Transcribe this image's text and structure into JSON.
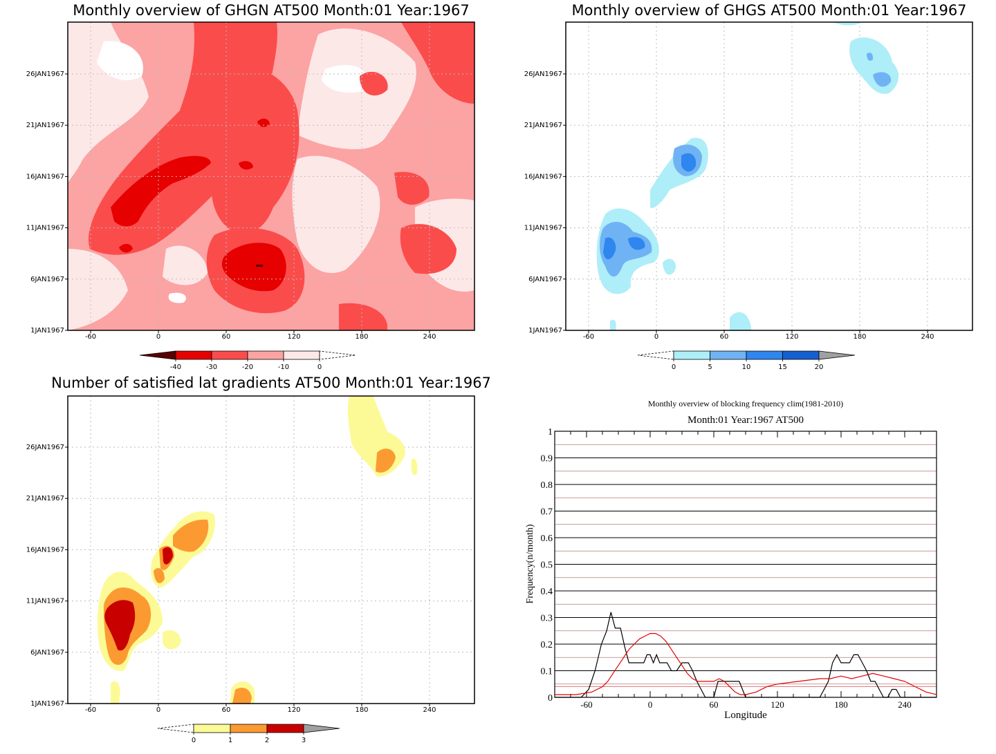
{
  "chart_data": [
    {
      "type": "heatmap",
      "title": "Monthly overview of GHGN AT500 Month:01 Year:1967",
      "x_ticks": [
        "-60",
        "0",
        "60",
        "120",
        "180",
        "240"
      ],
      "y_ticks": [
        "1JAN1967",
        "6JAN1967",
        "11JAN1967",
        "16JAN1967",
        "21JAN1967",
        "26JAN1967"
      ],
      "colorbar": {
        "labels": [
          "-40",
          "-30",
          "-20",
          "-10",
          "0"
        ],
        "colors": [
          "#5a0000",
          "#e60000",
          "#fb4c4c",
          "#fca3a3",
          "#fde8e8"
        ]
      }
    },
    {
      "type": "heatmap",
      "title": "Monthly overview of GHGS AT500 Month:01 Year:1967",
      "x_ticks": [
        "-60",
        "0",
        "60",
        "120",
        "180",
        "240"
      ],
      "y_ticks": [
        "1JAN1967",
        "6JAN1967",
        "11JAN1967",
        "16JAN1967",
        "21JAN1967",
        "26JAN1967"
      ],
      "colorbar": {
        "labels": [
          "0",
          "5",
          "10",
          "15",
          "20"
        ],
        "colors": [
          "#aeeef8",
          "#6fb3f5",
          "#2e86ee",
          "#1560d0",
          "#a0a0a0"
        ]
      }
    },
    {
      "type": "heatmap",
      "title": "Number of satisfied lat gradients AT500 Month:01 Year:1967",
      "x_ticks": [
        "-60",
        "0",
        "60",
        "120",
        "180",
        "240"
      ],
      "y_ticks": [
        "1JAN1967",
        "6JAN1967",
        "11JAN1967",
        "16JAN1967",
        "21JAN1967",
        "26JAN1967"
      ],
      "colorbar": {
        "labels": [
          "0",
          "1",
          "2",
          "3"
        ],
        "colors": [
          "#fcfa96",
          "#fc9a32",
          "#c80000",
          "#a0a0a0"
        ]
      }
    },
    {
      "type": "line",
      "title": "Monthly overview of blocking frequency clim(1981-2010)",
      "subtitle": "Month:01 Year:1967  AT500",
      "xlabel": "Longitude",
      "ylabel": "Frequency(n/month)",
      "xlim": [
        -90,
        270
      ],
      "ylim": [
        0,
        1
      ],
      "x_ticks": [
        "-60",
        "0",
        "60",
        "120",
        "180",
        "240"
      ],
      "y_ticks": [
        "0",
        "0.1",
        "0.2",
        "0.3",
        "0.4",
        "0.5",
        "0.6",
        "0.7",
        "0.8",
        "0.9",
        "1"
      ],
      "series": [
        {
          "color": "#000000",
          "x": [
            -90,
            -65,
            -58,
            -52,
            -46,
            -41,
            -37,
            -33,
            -28,
            -24,
            -20,
            -15,
            -10,
            -6,
            -3,
            0,
            3,
            6,
            9,
            12,
            16,
            20,
            25,
            30,
            36,
            40,
            44,
            48,
            52,
            56,
            60,
            64,
            68,
            72,
            78,
            84,
            90,
            100,
            120,
            140,
            160,
            164,
            168,
            172,
            176,
            180,
            184,
            188,
            192,
            196,
            200,
            204,
            208,
            212,
            216,
            220,
            224,
            228,
            232,
            236,
            240,
            270
          ],
          "y": [
            0,
            0,
            0.03,
            0.1,
            0.2,
            0.25,
            0.32,
            0.26,
            0.26,
            0.19,
            0.13,
            0.13,
            0.13,
            0.13,
            0.16,
            0.16,
            0.13,
            0.16,
            0.13,
            0.13,
            0.13,
            0.1,
            0.1,
            0.13,
            0.13,
            0.1,
            0.06,
            0.03,
            0,
            0,
            0,
            0.06,
            0.06,
            0.06,
            0.06,
            0.06,
            0,
            0,
            0,
            0,
            0,
            0.03,
            0.06,
            0.13,
            0.16,
            0.13,
            0.13,
            0.13,
            0.16,
            0.16,
            0.13,
            0.1,
            0.06,
            0.06,
            0.03,
            0,
            0,
            0.03,
            0.03,
            0,
            0,
            0
          ]
        },
        {
          "color": "#e00000",
          "x": [
            -90,
            -70,
            -55,
            -45,
            -40,
            -35,
            -30,
            -25,
            -20,
            -15,
            -10,
            -5,
            0,
            5,
            10,
            15,
            20,
            25,
            30,
            35,
            40,
            45,
            50,
            55,
            60,
            65,
            70,
            75,
            80,
            85,
            90,
            100,
            110,
            120,
            140,
            160,
            170,
            180,
            190,
            200,
            210,
            220,
            230,
            240,
            250,
            260,
            270
          ],
          "y": [
            0.01,
            0.01,
            0.02,
            0.04,
            0.06,
            0.09,
            0.12,
            0.15,
            0.18,
            0.2,
            0.22,
            0.23,
            0.24,
            0.24,
            0.23,
            0.21,
            0.18,
            0.15,
            0.12,
            0.09,
            0.07,
            0.06,
            0.06,
            0.06,
            0.06,
            0.07,
            0.06,
            0.04,
            0.02,
            0.01,
            0.01,
            0.02,
            0.04,
            0.05,
            0.06,
            0.07,
            0.07,
            0.08,
            0.07,
            0.08,
            0.09,
            0.08,
            0.07,
            0.06,
            0.04,
            0.02,
            0.01
          ]
        }
      ]
    }
  ]
}
